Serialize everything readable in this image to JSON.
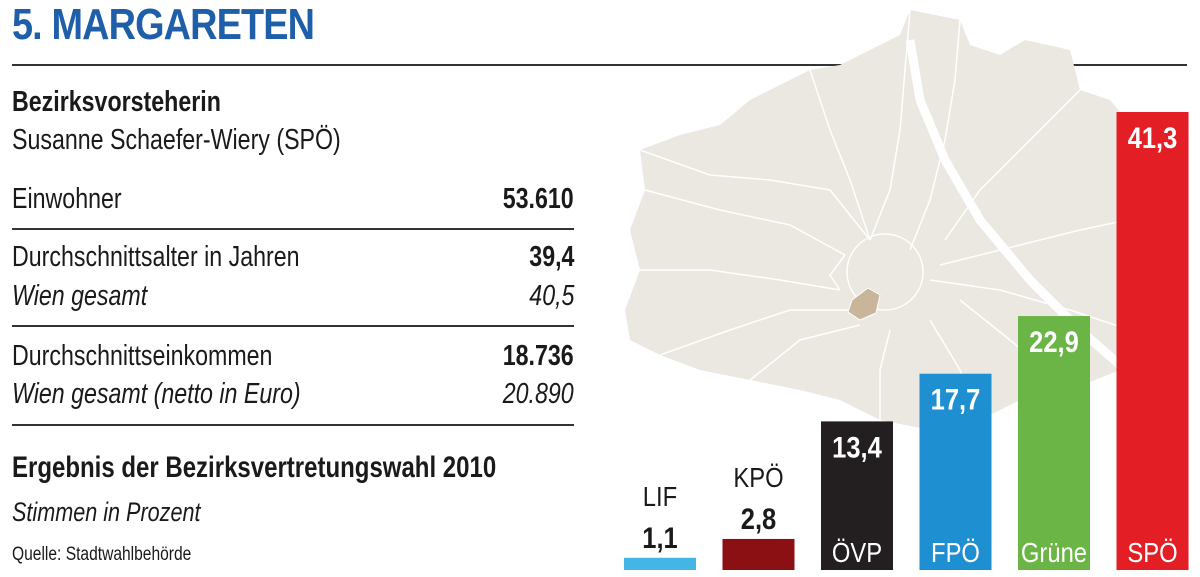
{
  "header": {
    "title": "5. MARGARETEN"
  },
  "info": {
    "mayor_heading": "Bezirksvorsteherin",
    "mayor_name": "Susanne Schaefer-Wiery (SPÖ)",
    "rows": [
      {
        "label": "Einwohner",
        "value": "53.610"
      },
      {
        "label": "Durchschnittsalter in Jahren",
        "value": "39,4",
        "sub_label": "Wien gesamt",
        "sub_value": "40,5"
      },
      {
        "label": "Durchschnittseinkommen",
        "value": "18.736",
        "sub_label": "Wien gesamt (netto in Euro)",
        "sub_value": "20.890"
      }
    ]
  },
  "election": {
    "heading": "Ergebnis der Bezirksvertretungswahl 2010",
    "subheading": "Stimmen in Prozent",
    "source": "Quelle: Stadtwahlbehörde"
  },
  "chart_data": {
    "type": "bar",
    "title": "Ergebnis der Bezirksvertretungswahl 2010",
    "subtitle": "Stimmen in Prozent",
    "categories": [
      "LIF",
      "KPÖ",
      "ÖVP",
      "FPÖ",
      "Grüne",
      "SPÖ"
    ],
    "values": [
      1.1,
      2.8,
      13.4,
      17.7,
      22.9,
      41.3
    ],
    "value_labels": [
      "1,1",
      "2,8",
      "13,4",
      "17,7",
      "22,9",
      "41,3"
    ],
    "colors": [
      "#43b6e6",
      "#8b1014",
      "#231f20",
      "#1e8fd1",
      "#6ab545",
      "#e31e24"
    ],
    "ylim": [
      0,
      41.3
    ],
    "grid": false,
    "legend": "none"
  },
  "map": {
    "highlight_color": "#c8b59a",
    "base_color": "#ebe7e1",
    "line_color": "#ffffff"
  }
}
